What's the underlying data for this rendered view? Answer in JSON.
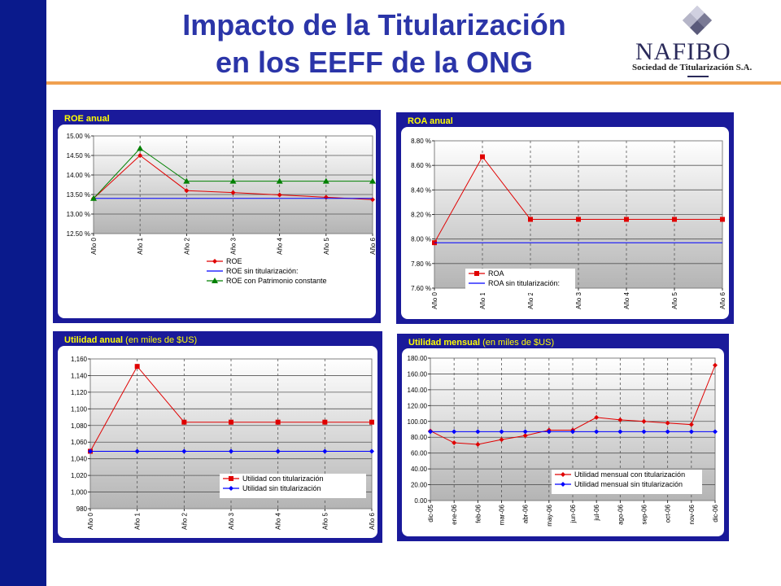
{
  "slide": {
    "title_line1": "Impacto de la Titularización",
    "title_line2": "en los EEFF de la ONG",
    "accent_color": "#0a1a8c",
    "title_color": "#2b35a8",
    "rule_color": "#f0a050"
  },
  "logo": {
    "name": "NAFIBO",
    "subtitle": "Sociedad de Titularización S.A.",
    "icon": "diamond-logo-icon"
  },
  "chart_data": [
    {
      "id": "roe",
      "type": "line",
      "title": "ROE anual",
      "subtitle": "",
      "categories": [
        "Año 0",
        "Año 1",
        "Año 2",
        "Año 3",
        "Año 4",
        "Año 5",
        "Año 6"
      ],
      "ylim": [
        12.5,
        15.0
      ],
      "yticks": [
        "12.50 %",
        "13.00 %",
        "13.50 %",
        "14.00 %",
        "14.50 %",
        "15.00 %"
      ],
      "grid": true,
      "legend": "bottom-right",
      "series": [
        {
          "name": "ROE",
          "color": "#e00000",
          "marker": "diamond",
          "values": [
            13.4,
            14.5,
            13.6,
            13.55,
            13.49,
            13.43,
            13.37
          ]
        },
        {
          "name": "ROE sin titularización:",
          "color": "#0000ff",
          "marker": "none",
          "values": [
            13.4,
            13.4,
            13.4,
            13.4,
            13.4,
            13.4,
            13.4
          ]
        },
        {
          "name": "ROE con Patrimonio constante",
          "color": "#008000",
          "marker": "triangle",
          "values": [
            13.4,
            14.68,
            13.84,
            13.84,
            13.84,
            13.84,
            13.84
          ]
        }
      ]
    },
    {
      "id": "roa",
      "type": "line",
      "title": "ROA anual",
      "subtitle": "",
      "categories": [
        "Año 0",
        "Año 1",
        "Año 2",
        "Año 3",
        "Año 4",
        "Año 5",
        "Año 6"
      ],
      "ylim": [
        7.6,
        8.8
      ],
      "yticks": [
        "7.60 %",
        "7.80 %",
        "8.00 %",
        "8.20 %",
        "8.40 %",
        "8.60 %",
        "8.80 %"
      ],
      "grid": true,
      "legend": "bottom-left",
      "series": [
        {
          "name": "ROA",
          "color": "#e00000",
          "marker": "square",
          "values": [
            7.97,
            8.67,
            8.16,
            8.16,
            8.16,
            8.16,
            8.16
          ]
        },
        {
          "name": "ROA sin titularización:",
          "color": "#0000ff",
          "marker": "none",
          "values": [
            7.97,
            7.97,
            7.97,
            7.97,
            7.97,
            7.97,
            7.97
          ]
        }
      ]
    },
    {
      "id": "util_anual",
      "type": "line",
      "title": "Utilidad anual",
      "subtitle": "(en miles de $US)",
      "categories": [
        "Año 0",
        "Año 1",
        "Año 2",
        "Año 3",
        "Año 4",
        "Año 5",
        "Año 6"
      ],
      "ylim": [
        980,
        1160
      ],
      "yticks": [
        "980",
        "1,000",
        "1,020",
        "1,040",
        "1,060",
        "1,080",
        "1,100",
        "1,120",
        "1,140",
        "1,160"
      ],
      "grid": true,
      "legend": "bottom-right",
      "series": [
        {
          "name": "Utilidad con titularización",
          "color": "#e00000",
          "marker": "square",
          "values": [
            1049,
            1151,
            1084,
            1084,
            1084,
            1084,
            1084
          ]
        },
        {
          "name": "Utilidad sin titularización",
          "color": "#0000ff",
          "marker": "diamond",
          "values": [
            1049,
            1049,
            1049,
            1049,
            1049,
            1049,
            1049
          ]
        }
      ]
    },
    {
      "id": "util_mensual",
      "type": "line",
      "title": "Utilidad mensual",
      "subtitle": "(en miles de $US)",
      "categories": [
        "dic-05",
        "ene-06",
        "feb-06",
        "mar-06",
        "abr-06",
        "may-06",
        "jun-06",
        "jul-06",
        "ago-06",
        "sep-06",
        "oct-06",
        "nov-06",
        "dic-06"
      ],
      "ylim": [
        0,
        180
      ],
      "yticks": [
        "0.00",
        "20.00",
        "40.00",
        "60.00",
        "80.00",
        "100.00",
        "120.00",
        "140.00",
        "160.00",
        "180.00"
      ],
      "grid": true,
      "legend": "bottom-center",
      "series": [
        {
          "name": "Utilidad mensual con titularización",
          "color": "#e00000",
          "marker": "diamond",
          "values": [
            88,
            73,
            71,
            77,
            82,
            89,
            89,
            105,
            102,
            100,
            98,
            96,
            171
          ]
        },
        {
          "name": "Utilidad mensual sin titularización",
          "color": "#0000ff",
          "marker": "diamond",
          "values": [
            87,
            87,
            87,
            87,
            87,
            87,
            87,
            87,
            87,
            87,
            87,
            87,
            87
          ]
        }
      ]
    }
  ]
}
